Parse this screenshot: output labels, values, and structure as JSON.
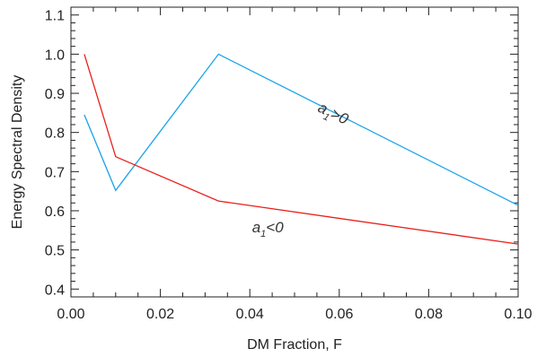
{
  "chart_data": {
    "type": "line",
    "xlabel": "DM Fraction, F",
    "ylabel": "Energy Spectral Density",
    "xlim": [
      0.0,
      0.1
    ],
    "ylim": [
      0.38,
      1.12
    ],
    "x_ticks": [
      "0.00",
      "0.02",
      "0.04",
      "0.06",
      "0.08",
      "0.10"
    ],
    "x_tick_values": [
      0.0,
      0.02,
      0.04,
      0.06,
      0.08,
      0.1
    ],
    "y_ticks": [
      "0.4",
      "0.5",
      "0.6",
      "0.7",
      "0.8",
      "0.9",
      "1.0",
      "1.1"
    ],
    "y_tick_values": [
      0.4,
      0.5,
      0.6,
      0.7,
      0.8,
      0.9,
      1.0,
      1.1
    ],
    "grid": false,
    "series": [
      {
        "color": "#1aa3e8",
        "x": [
          0.003,
          0.01,
          0.033,
          0.1
        ],
        "y": [
          0.845,
          0.652,
          1.0,
          0.614
        ]
      },
      {
        "color": "#e8201a",
        "x": [
          0.003,
          0.01,
          0.033,
          0.1
        ],
        "y": [
          1.0,
          0.738,
          0.625,
          0.515
        ]
      }
    ],
    "annotations": [
      {
        "base": "a",
        "sub": "1",
        "rest": ">0",
        "x": 0.055,
        "y": 0.855,
        "rotate": 26
      },
      {
        "base": "a",
        "sub": "1",
        "rest": "<0",
        "x": 0.0405,
        "y": 0.545,
        "rotate": 0
      }
    ]
  }
}
